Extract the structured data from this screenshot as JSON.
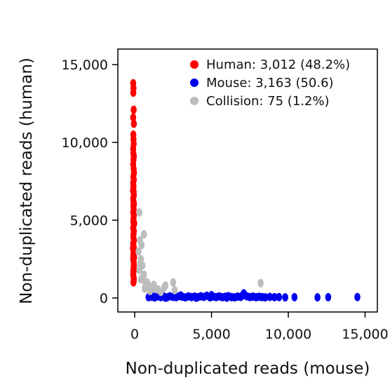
{
  "chart_data": {
    "type": "scatter",
    "xlabel": "Non-duplicated reads (mouse)",
    "ylabel": "Non-duplicated reads (human)",
    "xlim": [
      -1100,
      15800
    ],
    "ylim": [
      -900,
      16000
    ],
    "xticks": [
      0,
      5000,
      10000,
      15000
    ],
    "xtick_labels": [
      "0",
      "5,000",
      "10,000",
      "15,000"
    ],
    "yticks": [
      0,
      5000,
      10000,
      15000
    ],
    "ytick_labels": [
      "0",
      "5,000",
      "10,000",
      "15,000"
    ],
    "grid": false,
    "legend_position": "top-right",
    "series": [
      {
        "name": "Human: 3,012 (48.2%)",
        "color": "#ff0000",
        "points": [
          [
            -100,
            13800
          ],
          [
            -80,
            13500
          ],
          [
            -90,
            13200
          ],
          [
            -70,
            12100
          ],
          [
            -100,
            11600
          ],
          [
            -60,
            11200
          ],
          [
            -90,
            10500
          ],
          [
            -80,
            10200
          ],
          [
            -70,
            9900
          ],
          [
            -100,
            9600
          ],
          [
            -90,
            9300
          ],
          [
            -60,
            9100
          ],
          [
            -80,
            8900
          ],
          [
            -100,
            8600
          ],
          [
            -70,
            8300
          ],
          [
            -50,
            8050
          ],
          [
            -90,
            7800
          ],
          [
            -60,
            7600
          ],
          [
            -100,
            7400
          ],
          [
            -80,
            7200
          ],
          [
            -90,
            7000
          ],
          [
            -70,
            6800
          ],
          [
            -60,
            6600
          ],
          [
            -100,
            6400
          ],
          [
            -80,
            6200
          ],
          [
            -50,
            6050
          ],
          [
            -90,
            5900
          ],
          [
            -70,
            5700
          ],
          [
            -100,
            5500
          ],
          [
            -60,
            5300
          ],
          [
            -80,
            5100
          ],
          [
            -90,
            4900
          ],
          [
            -70,
            4700
          ],
          [
            -100,
            4500
          ],
          [
            -60,
            4300
          ],
          [
            -80,
            4100
          ],
          [
            -90,
            3900
          ],
          [
            -50,
            3700
          ],
          [
            -100,
            3500
          ],
          [
            -70,
            3300
          ],
          [
            -60,
            3100
          ],
          [
            -80,
            2900
          ],
          [
            -90,
            2700
          ],
          [
            -100,
            2500
          ],
          [
            -70,
            2300
          ],
          [
            -60,
            2100
          ],
          [
            -80,
            1900
          ],
          [
            -90,
            1700
          ],
          [
            -100,
            1500
          ],
          [
            -70,
            1300
          ],
          [
            -60,
            1150
          ],
          [
            -80,
            1000
          ],
          [
            -40,
            2600
          ],
          [
            -30,
            4800
          ],
          [
            -120,
            3200
          ],
          [
            -110,
            6900
          ],
          [
            -40,
            1800
          ]
        ]
      },
      {
        "name": "Mouse: 3,163 (50.6)",
        "color": "#0000ee",
        "points": [
          [
            900,
            50
          ],
          [
            1100,
            80
          ],
          [
            1300,
            30
          ],
          [
            1500,
            100
          ],
          [
            1700,
            60
          ],
          [
            1900,
            90
          ],
          [
            2100,
            40
          ],
          [
            2300,
            110
          ],
          [
            2500,
            70
          ],
          [
            2700,
            50
          ],
          [
            2900,
            120
          ],
          [
            3100,
            80
          ],
          [
            3300,
            40
          ],
          [
            3500,
            100
          ],
          [
            3700,
            60
          ],
          [
            3900,
            90
          ],
          [
            4100,
            50
          ],
          [
            4300,
            110
          ],
          [
            4500,
            70
          ],
          [
            4700,
            150
          ],
          [
            4900,
            40
          ],
          [
            5100,
            90
          ],
          [
            5300,
            60
          ],
          [
            5500,
            100
          ],
          [
            5700,
            50
          ],
          [
            5900,
            80
          ],
          [
            6100,
            120
          ],
          [
            6300,
            60
          ],
          [
            6500,
            40
          ],
          [
            6700,
            90
          ],
          [
            6900,
            70
          ],
          [
            7100,
            300
          ],
          [
            7300,
            110
          ],
          [
            7500,
            60
          ],
          [
            7700,
            90
          ],
          [
            7900,
            50
          ],
          [
            8100,
            80
          ],
          [
            8300,
            60
          ],
          [
            8500,
            40
          ],
          [
            8800,
            70
          ],
          [
            9100,
            50
          ],
          [
            9400,
            60
          ],
          [
            9800,
            40
          ],
          [
            10400,
            50
          ],
          [
            11900,
            40
          ],
          [
            12600,
            50
          ],
          [
            14500,
            60
          ],
          [
            1200,
            140
          ],
          [
            2000,
            20
          ],
          [
            3000,
            160
          ],
          [
            4000,
            20
          ],
          [
            6000,
            20
          ],
          [
            7000,
            140
          ],
          [
            5000,
            180
          ]
        ]
      },
      {
        "name": "Collision: 75 (1.2%)",
        "color": "#bdbdbd",
        "points": [
          [
            300,
            5500
          ],
          [
            600,
            4100
          ],
          [
            350,
            3700
          ],
          [
            450,
            3400
          ],
          [
            250,
            3000
          ],
          [
            400,
            2500
          ],
          [
            500,
            2100
          ],
          [
            300,
            1800
          ],
          [
            600,
            1500
          ],
          [
            400,
            1200
          ],
          [
            700,
            900
          ],
          [
            900,
            800
          ],
          [
            1100,
            700
          ],
          [
            1300,
            600
          ],
          [
            2000,
            800
          ],
          [
            2500,
            1000
          ],
          [
            1700,
            400
          ],
          [
            1500,
            550
          ],
          [
            8200,
            950
          ],
          [
            2600,
            500
          ],
          [
            1000,
            450
          ],
          [
            800,
            1000
          ],
          [
            550,
            1350
          ],
          [
            350,
            2200
          ],
          [
            650,
            600
          ],
          [
            1250,
            850
          ],
          [
            1900,
            650
          ]
        ]
      }
    ]
  }
}
